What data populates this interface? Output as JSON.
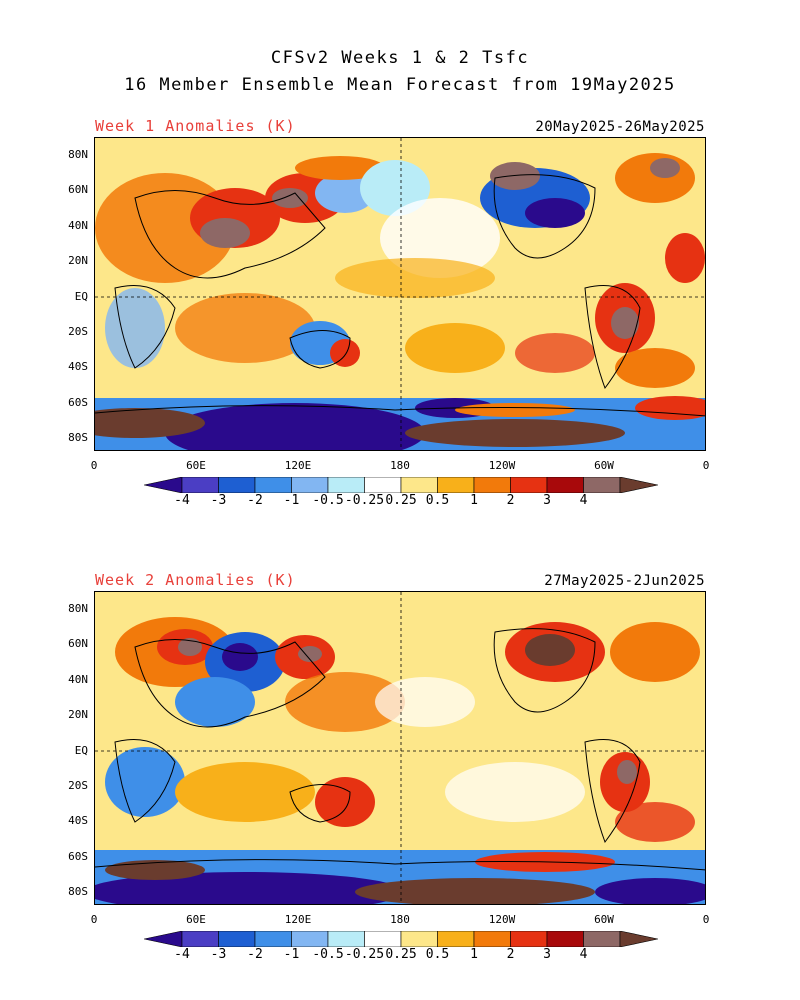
{
  "title_line1": "CFSv2 Weeks 1 & 2 Tsfc",
  "title_line2": "16 Member Ensemble Mean Forecast from 19May2025",
  "panels": [
    {
      "label": "Week 1 Anomalies (K)",
      "dates": "20May2025-26May2025",
      "lat_labels": [
        "80N",
        "60N",
        "40N",
        "20N",
        "EQ",
        "20S",
        "40S",
        "60S",
        "80S"
      ],
      "lon_labels": [
        "0",
        "60E",
        "120E",
        "180",
        "120W",
        "60W",
        "0"
      ]
    },
    {
      "label": "Week 2 Anomalies (K)",
      "dates": "27May2025-2Jun2025",
      "lat_labels": [
        "80N",
        "60N",
        "40N",
        "20N",
        "EQ",
        "20S",
        "40S",
        "60S",
        "80S"
      ],
      "lon_labels": [
        "0",
        "60E",
        "120E",
        "180",
        "120W",
        "60W",
        "0"
      ]
    }
  ],
  "colorbar": {
    "labels": [
      "-4",
      "-3",
      "-2",
      "-1",
      "-0.5",
      "-0.25",
      "0.25",
      "0.5",
      "1",
      "2",
      "3",
      "4"
    ],
    "colors": [
      "#2a0a8c",
      "#4b3ec4",
      "#1e5fd2",
      "#3f8fe8",
      "#82b6f2",
      "#b9ecf7",
      "#ffffff",
      "#fde78a",
      "#f8b01a",
      "#f27a0b",
      "#e63212",
      "#a8090b",
      "#8e6866",
      "#6a3c2e"
    ]
  }
}
